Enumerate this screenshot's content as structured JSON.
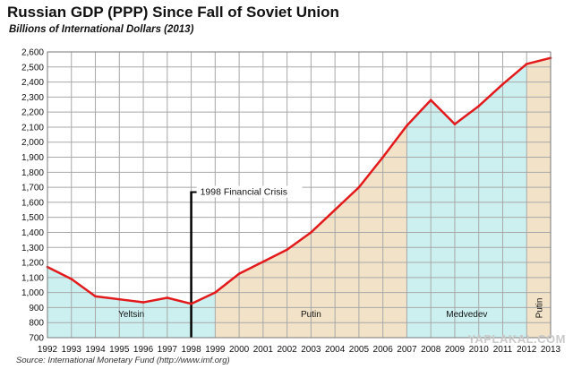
{
  "chart_data": {
    "type": "line",
    "title": "Russian GDP (PPP) Since Fall of Soviet Union",
    "subtitle": "Billions of International Dollars (2013)",
    "source": "Source: International Monetary Fund (http://www.imf.org)",
    "xlabel": "",
    "ylabel": "",
    "x": [
      1992,
      1993,
      1994,
      1995,
      1996,
      1997,
      1998,
      1999,
      2000,
      2001,
      2002,
      2003,
      2004,
      2005,
      2006,
      2007,
      2008,
      2009,
      2010,
      2011,
      2012,
      2013
    ],
    "series": [
      {
        "values": [
          1170,
          1090,
          975,
          955,
          935,
          965,
          925,
          1000,
          1125,
          1205,
          1285,
          1400,
          1550,
          1700,
          1900,
          2110,
          2280,
          2120,
          2240,
          2385,
          2520,
          2560
        ],
        "color": "#e31a1c"
      }
    ],
    "xlim": [
      1992,
      2013
    ],
    "ylim": [
      700,
      2600
    ],
    "yticks": [
      700,
      800,
      900,
      1000,
      1100,
      1200,
      1300,
      1400,
      1500,
      1600,
      1700,
      1800,
      1900,
      2000,
      2100,
      2200,
      2300,
      2400,
      2500,
      2600
    ],
    "ytick_labels": [
      "700",
      "800",
      "900",
      "1,000",
      "1,100",
      "1,200",
      "1,300",
      "1,400",
      "1,500",
      "1,600",
      "1,700",
      "1,800",
      "1,900",
      "2,000",
      "2,100",
      "2,200",
      "2,300",
      "2,400",
      "2,500",
      "2,600"
    ],
    "xtick_labels": [
      "1992",
      "1993",
      "1994",
      "1995",
      "1996",
      "1997",
      "1998",
      "1999",
      "2000",
      "2001",
      "2002",
      "2003",
      "2004",
      "2005",
      "2006",
      "2007",
      "2008",
      "2009",
      "2010",
      "2011",
      "2012",
      "2013"
    ],
    "grid": true,
    "eras": [
      {
        "label": "Yeltsin",
        "from": 1992,
        "to": 1999,
        "color": "#ccf0f0"
      },
      {
        "label": "Putin",
        "from": 1999,
        "to": 2007,
        "color": "#f2e3c8"
      },
      {
        "label": "Medvedev",
        "from": 2007,
        "to": 2012,
        "color": "#ccf0f0"
      },
      {
        "label": "Putin",
        "from": 2012,
        "to": 2013,
        "color": "#f2e3c8"
      }
    ],
    "annotations": [
      {
        "label": "1998 Financial Crisis",
        "x": 1998,
        "y": 1650
      }
    ]
  },
  "watermark": "YAPLAKAL.COM"
}
